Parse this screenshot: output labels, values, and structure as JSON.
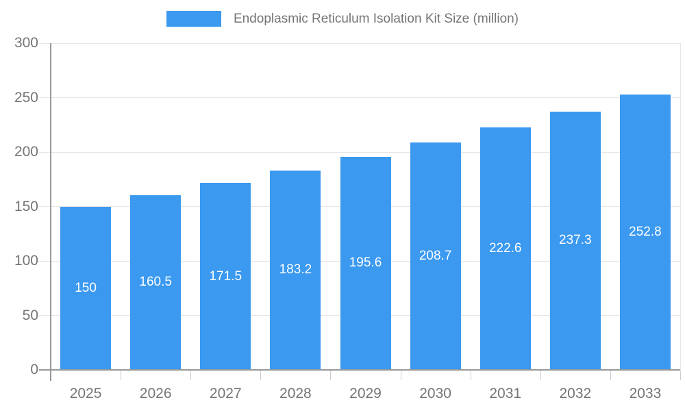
{
  "chart_data": {
    "type": "bar",
    "title": "Endoplasmic Reticulum Isolation Kit Size (million)",
    "categories": [
      "2025",
      "2026",
      "2027",
      "2028",
      "2029",
      "2030",
      "2031",
      "2032",
      "2033"
    ],
    "values": [
      150,
      160.5,
      171.5,
      183.2,
      195.6,
      208.7,
      222.6,
      237.3,
      252.8
    ],
    "value_labels": [
      "150",
      "160.5",
      "171.5",
      "183.2",
      "195.6",
      "208.7",
      "222.6",
      "237.3",
      "252.8"
    ],
    "xlabel": "",
    "ylabel": "",
    "ylim": [
      0,
      300
    ],
    "y_ticks": [
      0,
      50,
      100,
      150,
      200,
      250,
      300
    ],
    "grid": true,
    "legend_position": "top-center",
    "colors": {
      "bar": "#3B99F0",
      "axis_line": "#999999",
      "gridline": "#e6e6e6",
      "tick_mark": "#cccccc",
      "axis_text": "#757575",
      "legend_text": "#757575",
      "value_text": "#ffffff",
      "background": "#ffffff"
    }
  }
}
